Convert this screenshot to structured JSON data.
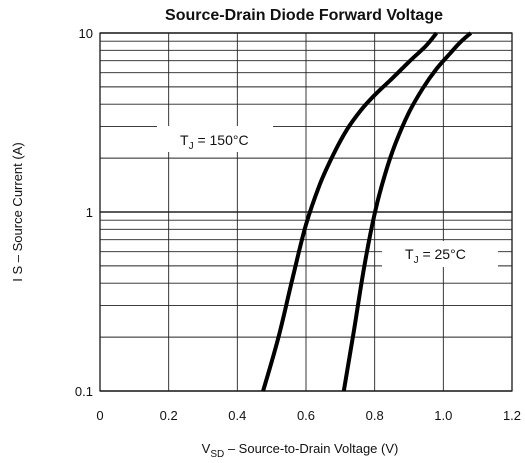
{
  "chart_data": {
    "type": "line",
    "title": "Source-Drain Diode Forward Voltage",
    "xlabel": {
      "main": "V",
      "sub": "SD",
      "rest": " –  Source-to-Drain Voltage (V)"
    },
    "ylabel": "I S  –  Source Current (A)",
    "xlim": [
      0,
      1.2
    ],
    "ylim": [
      0.1,
      10
    ],
    "yscale": "log",
    "grid": true,
    "x_ticks": [
      "0",
      "0.2",
      "0.4",
      "0.6",
      "0.8",
      "1.0",
      "1.2"
    ],
    "y_ticks": [
      "0.1",
      "1",
      "10"
    ],
    "series": [
      {
        "name": "TJ = 150°C",
        "x": [
          0.475,
          0.52,
          0.56,
          0.6,
          0.64,
          0.68,
          0.72,
          0.76,
          0.8,
          0.85,
          0.9,
          0.95,
          0.98
        ],
        "y": [
          0.1,
          0.2,
          0.42,
          0.85,
          1.42,
          2.1,
          2.9,
          3.7,
          4.5,
          5.55,
          6.9,
          8.5,
          10.0
        ]
      },
      {
        "name": "TJ = 25°C",
        "x": [
          0.71,
          0.74,
          0.77,
          0.8,
          0.83,
          0.86,
          0.9,
          0.94,
          0.98,
          1.02,
          1.05,
          1.08
        ],
        "y": [
          0.1,
          0.22,
          0.5,
          0.98,
          1.62,
          2.4,
          3.6,
          4.9,
          6.3,
          7.7,
          8.9,
          10.0
        ]
      }
    ],
    "annotations": [
      {
        "main": "T",
        "sub": "J",
        "rest": " = 150°C"
      },
      {
        "main": "T",
        "sub": "J",
        "rest": " = 25°C"
      }
    ]
  }
}
